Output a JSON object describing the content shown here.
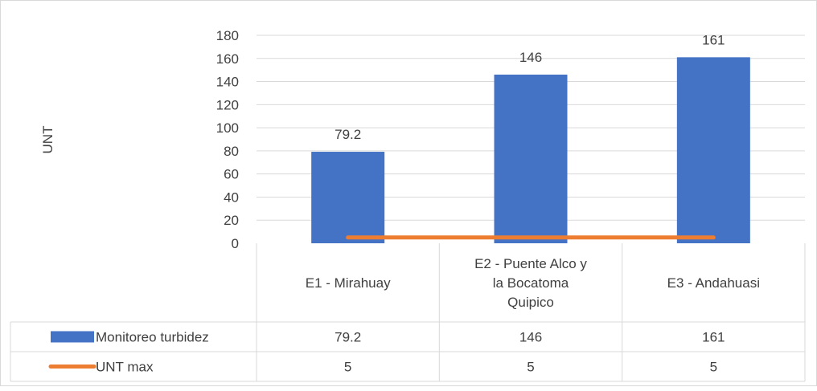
{
  "chart_data": {
    "type": "bar",
    "ylabel": "UNT",
    "ylim": [
      0,
      180
    ],
    "yticks": [
      0,
      20,
      40,
      60,
      80,
      100,
      120,
      140,
      160,
      180
    ],
    "grid": true,
    "categories": [
      "E1 - Mirahuay",
      "E2 - Puente Alco y la Bocatoma Quipico",
      "E3 - Andahuasi"
    ],
    "category_lines": [
      [
        "E1 - Mirahuay"
      ],
      [
        "E2 - Puente Alco y",
        "la Bocatoma",
        "Quipico"
      ],
      [
        "E3 - Andahuasi"
      ]
    ],
    "series": [
      {
        "name": "Monitoreo turbidez",
        "type": "bar",
        "color": "#4472c4",
        "values": [
          79.2,
          146,
          161
        ],
        "value_labels": [
          "79.2",
          "146",
          "161"
        ]
      },
      {
        "name": "UNT max",
        "type": "line",
        "color": "#ed7d31",
        "values": [
          5,
          5,
          5
        ],
        "value_labels": [
          "5",
          "5",
          "5"
        ]
      }
    ],
    "legend": "data-table"
  }
}
